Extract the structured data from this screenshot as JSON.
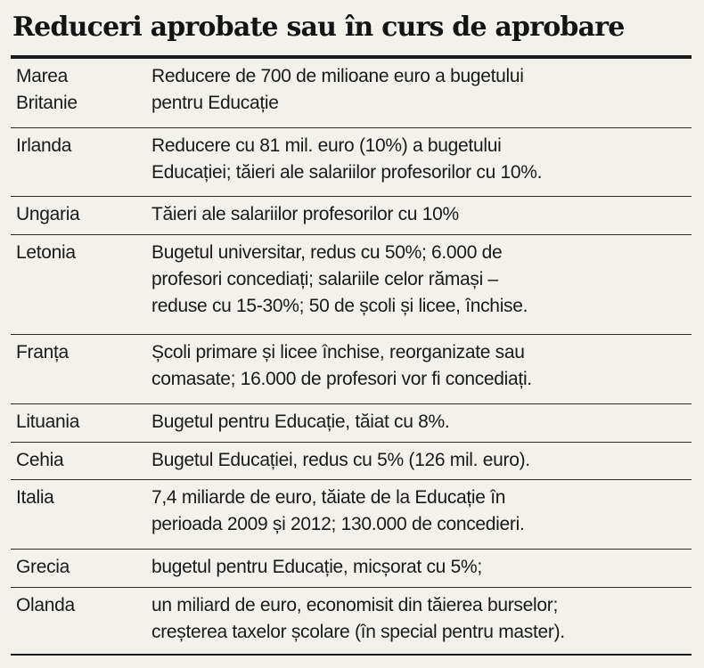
{
  "title": "Reduceri aprobate sau în curs de aprobare",
  "rows": [
    {
      "country": [
        "Marea",
        "Britanie"
      ],
      "desc": [
        "Reducere de 700 de milioane euro a bugetului",
        "pentru Educație"
      ]
    },
    {
      "country": [
        "Irlanda"
      ],
      "desc": [
        "Reducere cu 81 mil. euro (10%) a bugetului",
        "Educației; tăieri ale salariilor profesorilor cu 10%."
      ]
    },
    {
      "country": [
        "Ungaria"
      ],
      "desc": [
        "Tăieri ale salariilor profesorilor cu 10%"
      ]
    },
    {
      "country": [
        "Letonia"
      ],
      "desc": [
        "Bugetul universitar, redus cu 50%; 6.000 de",
        "profesori concediați; salariile celor rămași –",
        "reduse cu 15-30%; 50 de școli și licee, închise."
      ]
    },
    {
      "country": [
        "Franța"
      ],
      "desc": [
        "Școli primare și licee închise, reorganizate sau",
        "comasate; 16.000 de profesori vor fi concediați."
      ]
    },
    {
      "country": [
        "Lituania"
      ],
      "desc": [
        "Bugetul pentru Educație, tăiat cu 8%."
      ]
    },
    {
      "country": [
        "Cehia"
      ],
      "desc": [
        "Bugetul Educației, redus cu 5% (126 mil. euro)."
      ]
    },
    {
      "country": [
        "Italia"
      ],
      "desc": [
        "7,4 miliarde de euro, tăiate de la Educație în",
        "perioada 2009 și 2012; 130.000 de concedieri."
      ]
    },
    {
      "country": [
        "Grecia"
      ],
      "desc": [
        "bugetul pentru Educație, micșorat cu 5%;"
      ]
    },
    {
      "country": [
        "Olanda"
      ],
      "desc": [
        "un miliard de euro, economisit din tăierea burselor;",
        "creșterea taxelor școlare (în special pentru master)."
      ]
    }
  ]
}
